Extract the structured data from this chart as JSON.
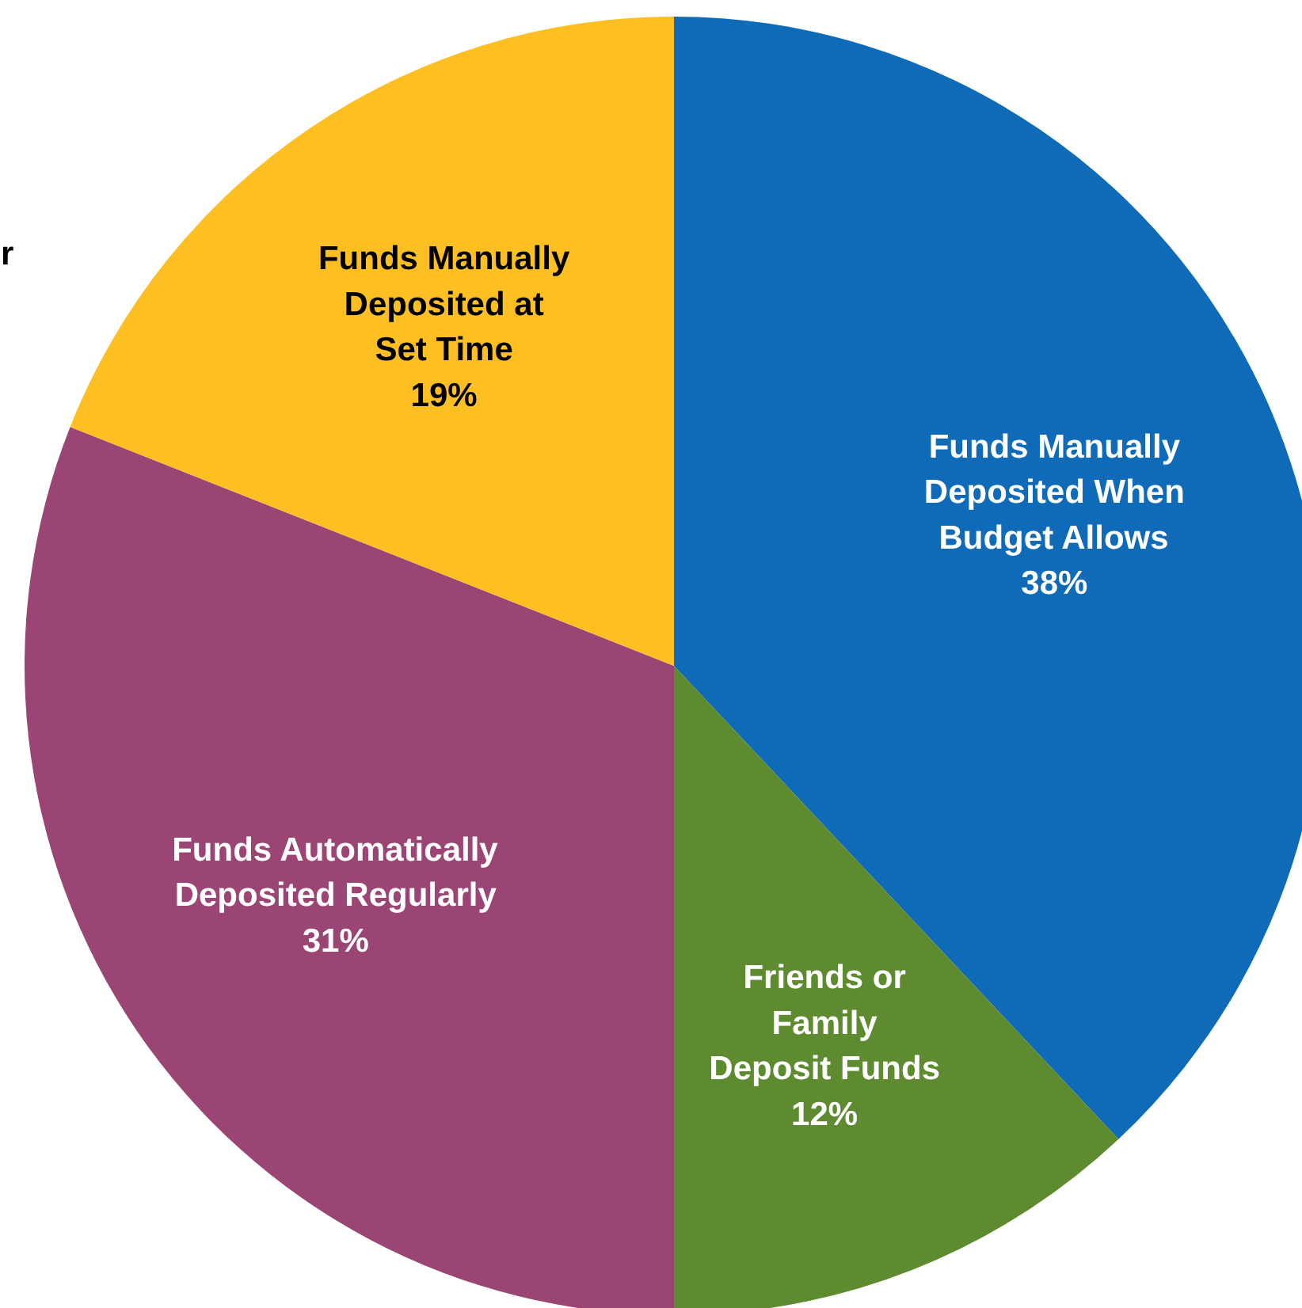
{
  "chart_data": {
    "type": "pie",
    "categories": [
      "Funds Manually Deposited When Budget Allows",
      "Friends or Family Deposit Funds",
      "Funds Automatically Deposited Regularly",
      "Funds Manually Deposited at Set Time"
    ],
    "values": [
      38,
      12,
      31,
      19
    ],
    "colors": [
      "#0f6ab8",
      "#5e8a30",
      "#9b4574",
      "#fdbf22"
    ],
    "value_labels": [
      "38%",
      "12%",
      "31%",
      "19%"
    ],
    "annotations": [
      "r"
    ]
  }
}
